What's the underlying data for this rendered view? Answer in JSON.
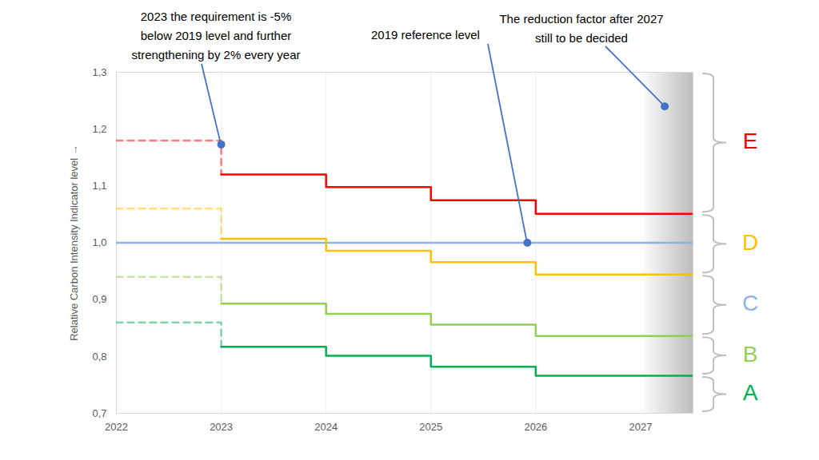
{
  "chart_data": {
    "type": "step",
    "y_label": "Relative Carbon Intensity Indicator level",
    "xlim": [
      2022,
      2027.5
    ],
    "xticks": [
      2022,
      2023,
      2024,
      2025,
      2026,
      2027
    ],
    "ylim": [
      0.7,
      1.3
    ],
    "yticks": [
      {
        "value": 0.7,
        "label": "0,7"
      },
      {
        "value": 0.8,
        "label": "0,8"
      },
      {
        "value": 0.9,
        "label": "0,9"
      },
      {
        "value": 1.0,
        "label": "1,0"
      },
      {
        "value": 1.1,
        "label": "1,1"
      },
      {
        "value": 1.2,
        "label": "1,2"
      },
      {
        "value": 1.3,
        "label": "1,3"
      }
    ],
    "grid": "x",
    "series": [
      {
        "color": "#8db4e2",
        "line_style": "solid",
        "x": [
          2022,
          2027.5
        ],
        "values": [
          1.0,
          1.0
        ]
      },
      {
        "color": "#ff0000",
        "line_style": "dashed",
        "x": [
          2022,
          2023
        ],
        "values": [
          1.18,
          1.12
        ]
      },
      {
        "color": "#ff0000",
        "line_style": "solid",
        "x": [
          2023,
          2024,
          2025,
          2026,
          2027.5
        ],
        "values": [
          1.12,
          1.098,
          1.075,
          1.051,
          1.051
        ]
      },
      {
        "color": "#ffc000",
        "line_style": "dashed",
        "x": [
          2022,
          2023
        ],
        "values": [
          1.06,
          1.007
        ]
      },
      {
        "color": "#ffc000",
        "line_style": "solid",
        "x": [
          2023,
          2024,
          2025,
          2026,
          2027.5
        ],
        "values": [
          1.007,
          0.986,
          0.966,
          0.944,
          0.944
        ]
      },
      {
        "color": "#92d050",
        "line_style": "dashed",
        "x": [
          2022,
          2023
        ],
        "values": [
          0.94,
          0.893
        ]
      },
      {
        "color": "#92d050",
        "line_style": "solid",
        "x": [
          2023,
          2024,
          2025,
          2026,
          2027.5
        ],
        "values": [
          0.893,
          0.875,
          0.856,
          0.836,
          0.836
        ]
      },
      {
        "color": "#00b050",
        "line_style": "dashed",
        "x": [
          2022,
          2023
        ],
        "values": [
          0.86,
          0.817
        ]
      },
      {
        "color": "#00b050",
        "line_style": "solid",
        "x": [
          2023,
          2024,
          2025,
          2026,
          2027.5
        ],
        "values": [
          0.817,
          0.801,
          0.782,
          0.766,
          0.766
        ]
      }
    ],
    "annotations": [
      {
        "text": "2023 the requirement is -5%\nbelow 2019 level and further\nstrengthening by 2% every year",
        "x": 2023,
        "y": 1.173
      },
      {
        "text": "2019 reference level",
        "x": 2025.92,
        "y": 1.0
      },
      {
        "text": "The reduction factor after 2027\nstill to be decided",
        "x": 2027.23,
        "y": 1.24
      }
    ],
    "ratings": [
      {
        "label": "E",
        "color": "#ff0000",
        "range": [
          1.051,
          1.3
        ]
      },
      {
        "label": "D",
        "color": "#ffc000",
        "range": [
          0.944,
          1.051
        ]
      },
      {
        "label": "C",
        "color": "#8db4e2",
        "range": [
          0.836,
          0.944
        ]
      },
      {
        "label": "B",
        "color": "#92d050",
        "range": [
          0.766,
          0.836
        ]
      },
      {
        "label": "A",
        "color": "#00b050",
        "range": [
          0.7,
          0.766
        ]
      }
    ],
    "undecided_region": [
      2027,
      2027.5
    ]
  }
}
